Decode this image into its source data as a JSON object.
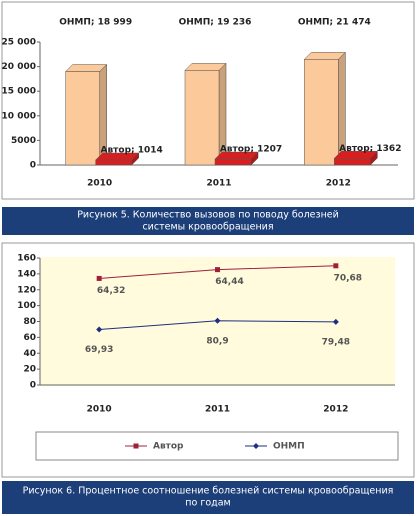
{
  "chart_data": [
    {
      "type": "bar3d",
      "categories": [
        "2010",
        "2011",
        "2012"
      ],
      "series": [
        {
          "name": "ОНМП",
          "color": "#fbc99a",
          "values": [
            18999,
            19236,
            21474
          ],
          "value_labels": [
            "ОНМП; 18 999",
            "ОНМП; 19 236",
            "ОНМП; 21 474"
          ]
        },
        {
          "name": "Автор",
          "color": "#d81e1e",
          "values": [
            1014,
            1207,
            1362
          ],
          "value_labels": [
            "Автор; 1014",
            "Автор; 1207",
            "Автор; 1362"
          ]
        }
      ],
      "ylim": [
        0,
        25000
      ],
      "yticks": [
        0,
        5000,
        {
          "value": 10000,
          "label": "10 000"
        },
        {
          "value": 15000,
          "label": "15 000"
        },
        {
          "value": 20000,
          "label": "20 000"
        },
        {
          "value": 25000,
          "label": "25 000"
        }
      ],
      "caption": [
        "Рисунок 5.  Количество вызовов по поводу болезней",
        "системы кровообращения"
      ]
    },
    {
      "type": "stacked-line",
      "categories": [
        "2010",
        "2011",
        "2012"
      ],
      "series": [
        {
          "name": "Автор",
          "color": "#a0203a",
          "values": [
            64.32,
            64.44,
            70.68
          ],
          "value_labels": [
            "64,32",
            "64,44",
            "70,68"
          ]
        },
        {
          "name": "ОНМП",
          "color": "#1f2f80",
          "values": [
            69.93,
            80.9,
            79.48
          ],
          "value_labels": [
            "69,93",
            "80,9",
            "79,48"
          ]
        }
      ],
      "ylim": [
        0,
        160
      ],
      "yticks": [
        0,
        20,
        40,
        60,
        80,
        100,
        120,
        140,
        160
      ],
      "caption": [
        "Рисунок 6.  Процентное соотношение болезней системы кровообращения",
        "по годам"
      ]
    }
  ]
}
